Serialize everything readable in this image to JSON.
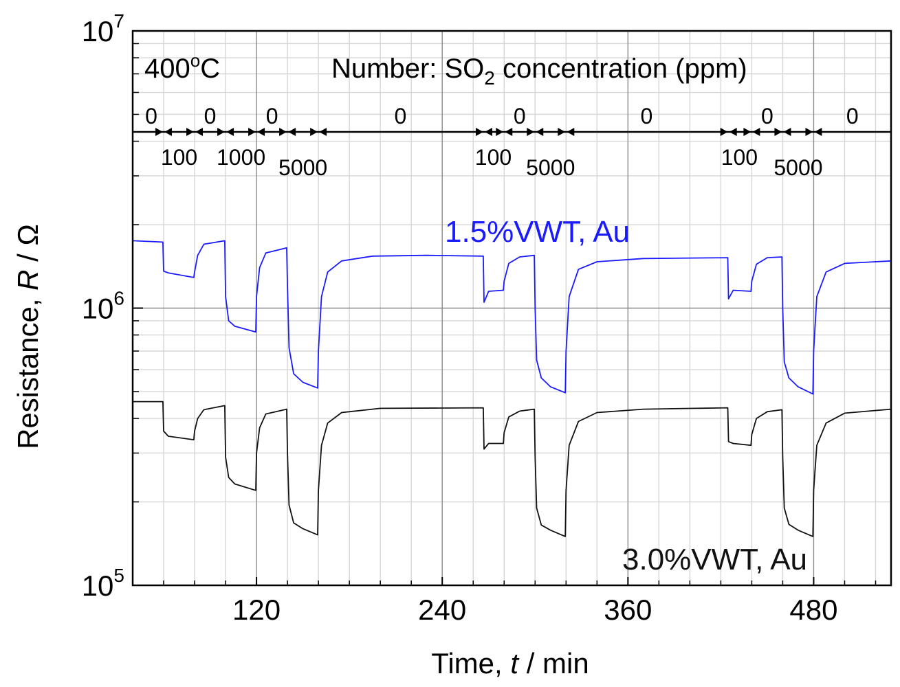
{
  "chart_data": {
    "type": "line",
    "title": "",
    "xlabel_prefix": "Time, ",
    "xlabel_var": "t",
    "xlabel_unit": " / min",
    "ylabel_prefix": "Resistance, ",
    "ylabel_var": "R",
    "ylabel_unit": " / Ω",
    "xlim": [
      40,
      530
    ],
    "ylim": [
      100000,
      10000000
    ],
    "yscale": "log",
    "grid": true,
    "xticks": [
      120,
      240,
      360,
      480
    ],
    "xtick_labels": [
      "120",
      "240",
      "360",
      "480"
    ],
    "yticks": [
      {
        "value": 100000,
        "base": "10",
        "exp": "5"
      },
      {
        "value": 1000000,
        "base": "10",
        "exp": "6"
      },
      {
        "value": 10000000,
        "base": "10",
        "exp": "7"
      }
    ],
    "annotations": {
      "temperature_num": "400",
      "temperature_deg": "o",
      "temperature_unit": "C",
      "legend_pre": "Number: SO",
      "legend_sub": "2",
      "legend_post": " concentration (ppm)"
    },
    "concentration_boundaries": [
      60,
      80,
      100,
      120,
      140,
      160,
      267,
      280,
      300,
      320,
      425,
      440,
      460,
      480
    ],
    "concentration_segments": [
      {
        "x": 52,
        "label": "0",
        "row": "top"
      },
      {
        "x": 70,
        "label": "100",
        "row": "bottom"
      },
      {
        "x": 90,
        "label": "0",
        "row": "top"
      },
      {
        "x": 110,
        "label": "1000",
        "row": "bottom"
      },
      {
        "x": 130,
        "label": "0",
        "row": "top"
      },
      {
        "x": 150,
        "label": "5000",
        "row": "bottom"
      },
      {
        "x": 213,
        "label": "0",
        "row": "top"
      },
      {
        "x": 273,
        "label": "100",
        "row": "bottom"
      },
      {
        "x": 290,
        "label": "0",
        "row": "top"
      },
      {
        "x": 310,
        "label": "5000",
        "row": "bottom"
      },
      {
        "x": 372,
        "label": "0",
        "row": "top"
      },
      {
        "x": 432,
        "label": "100",
        "row": "bottom"
      },
      {
        "x": 450,
        "label": "0",
        "row": "top"
      },
      {
        "x": 470,
        "label": "5000",
        "row": "bottom"
      },
      {
        "x": 505,
        "label": "0",
        "row": "top"
      }
    ],
    "series": [
      {
        "name": "1.5%VWT, Au",
        "color": "#1a1aff",
        "points": [
          [
            40,
            1750000
          ],
          [
            59.5,
            1730000
          ],
          [
            60,
            1360000
          ],
          [
            63,
            1340000
          ],
          [
            79.5,
            1290000
          ],
          [
            80,
            1350000
          ],
          [
            82,
            1550000
          ],
          [
            86,
            1700000
          ],
          [
            99.5,
            1750000
          ],
          [
            100,
            1100000
          ],
          [
            102,
            900000
          ],
          [
            106,
            860000
          ],
          [
            119.5,
            820000
          ],
          [
            120,
            1100000
          ],
          [
            122,
            1400000
          ],
          [
            126,
            1580000
          ],
          [
            139.5,
            1650000
          ],
          [
            140,
            1200000
          ],
          [
            141,
            720000
          ],
          [
            144,
            580000
          ],
          [
            150,
            540000
          ],
          [
            159.5,
            515000
          ],
          [
            160,
            700000
          ],
          [
            162,
            1100000
          ],
          [
            166,
            1350000
          ],
          [
            175,
            1480000
          ],
          [
            195,
            1540000
          ],
          [
            230,
            1550000
          ],
          [
            266.5,
            1540000
          ],
          [
            267,
            1050000
          ],
          [
            270,
            1150000
          ],
          [
            279.5,
            1160000
          ],
          [
            280,
            1250000
          ],
          [
            283,
            1450000
          ],
          [
            290,
            1530000
          ],
          [
            299.5,
            1550000
          ],
          [
            300,
            1000000
          ],
          [
            301,
            650000
          ],
          [
            304,
            560000
          ],
          [
            310,
            520000
          ],
          [
            319.5,
            495000
          ],
          [
            320,
            700000
          ],
          [
            322,
            1100000
          ],
          [
            328,
            1380000
          ],
          [
            340,
            1470000
          ],
          [
            370,
            1510000
          ],
          [
            424.5,
            1520000
          ],
          [
            425,
            1080000
          ],
          [
            428,
            1160000
          ],
          [
            439.5,
            1150000
          ],
          [
            440,
            1250000
          ],
          [
            443,
            1440000
          ],
          [
            450,
            1520000
          ],
          [
            459.5,
            1530000
          ],
          [
            460,
            1000000
          ],
          [
            461,
            640000
          ],
          [
            464,
            560000
          ],
          [
            470,
            520000
          ],
          [
            479.5,
            490000
          ],
          [
            480,
            700000
          ],
          [
            482,
            1100000
          ],
          [
            488,
            1350000
          ],
          [
            500,
            1450000
          ],
          [
            530,
            1480000
          ]
        ]
      },
      {
        "name": "3.0%VWT, Au",
        "color": "#111111",
        "points": [
          [
            40,
            460000
          ],
          [
            59.5,
            460000
          ],
          [
            60,
            360000
          ],
          [
            63,
            345000
          ],
          [
            79.5,
            335000
          ],
          [
            80,
            360000
          ],
          [
            82,
            400000
          ],
          [
            86,
            430000
          ],
          [
            99.5,
            445000
          ],
          [
            100,
            290000
          ],
          [
            102,
            245000
          ],
          [
            106,
            232000
          ],
          [
            119.5,
            220000
          ],
          [
            120,
            300000
          ],
          [
            122,
            370000
          ],
          [
            126,
            415000
          ],
          [
            139.5,
            432000
          ],
          [
            140,
            300000
          ],
          [
            141,
            195000
          ],
          [
            144,
            168000
          ],
          [
            150,
            160000
          ],
          [
            159.5,
            152000
          ],
          [
            160,
            220000
          ],
          [
            162,
            320000
          ],
          [
            166,
            385000
          ],
          [
            175,
            420000
          ],
          [
            200,
            435000
          ],
          [
            266.5,
            437000
          ],
          [
            267,
            310000
          ],
          [
            270,
            325000
          ],
          [
            279.5,
            325000
          ],
          [
            280,
            355000
          ],
          [
            283,
            405000
          ],
          [
            290,
            425000
          ],
          [
            299.5,
            432000
          ],
          [
            300,
            290000
          ],
          [
            301,
            190000
          ],
          [
            304,
            165000
          ],
          [
            310,
            158000
          ],
          [
            319.5,
            150000
          ],
          [
            320,
            220000
          ],
          [
            322,
            320000
          ],
          [
            328,
            390000
          ],
          [
            340,
            420000
          ],
          [
            370,
            432000
          ],
          [
            424.5,
            437000
          ],
          [
            425,
            330000
          ],
          [
            428,
            325000
          ],
          [
            439.5,
            320000
          ],
          [
            440,
            350000
          ],
          [
            443,
            400000
          ],
          [
            450,
            423000
          ],
          [
            459.5,
            430000
          ],
          [
            460,
            290000
          ],
          [
            461,
            190000
          ],
          [
            464,
            166000
          ],
          [
            470,
            158000
          ],
          [
            479.5,
            150000
          ],
          [
            480,
            220000
          ],
          [
            482,
            320000
          ],
          [
            488,
            385000
          ],
          [
            500,
            418000
          ],
          [
            530,
            432000
          ]
        ]
      }
    ]
  }
}
